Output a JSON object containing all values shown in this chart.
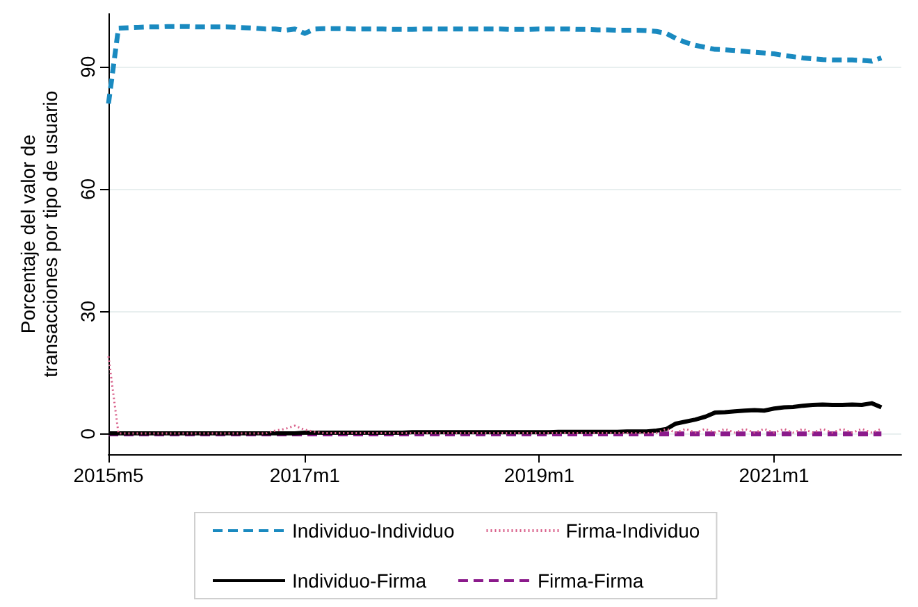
{
  "chart_data": {
    "type": "line",
    "ylabel": "Porcentaje del valor de transacciones por tipo de usuario",
    "x": [
      "2015-05",
      "2015-06",
      "2015-07",
      "2015-08",
      "2015-09",
      "2015-10",
      "2015-11",
      "2015-12",
      "2016-01",
      "2016-02",
      "2016-03",
      "2016-04",
      "2016-05",
      "2016-06",
      "2016-07",
      "2016-08",
      "2016-09",
      "2016-10",
      "2016-11",
      "2016-12",
      "2017-01",
      "2017-02",
      "2017-03",
      "2017-04",
      "2017-05",
      "2017-06",
      "2017-07",
      "2017-08",
      "2017-09",
      "2017-10",
      "2017-11",
      "2017-12",
      "2018-01",
      "2018-02",
      "2018-03",
      "2018-04",
      "2018-05",
      "2018-06",
      "2018-07",
      "2018-08",
      "2018-09",
      "2018-10",
      "2018-11",
      "2018-12",
      "2019-01",
      "2019-02",
      "2019-03",
      "2019-04",
      "2019-05",
      "2019-06",
      "2019-07",
      "2019-08",
      "2019-09",
      "2019-10",
      "2019-11",
      "2019-12",
      "2020-01",
      "2020-02",
      "2020-03",
      "2020-04",
      "2020-05",
      "2020-06",
      "2020-07",
      "2020-08",
      "2020-09",
      "2020-10",
      "2020-11",
      "2020-12",
      "2021-01",
      "2021-02",
      "2021-03",
      "2021-04",
      "2021-05",
      "2021-06",
      "2021-07",
      "2021-08",
      "2021-09",
      "2021-10",
      "2021-11",
      "2021-12"
    ],
    "xlim": [
      "2015-05",
      "2022-02"
    ],
    "xticks": [
      {
        "value": "2015-05",
        "label": "2015m5"
      },
      {
        "value": "2017-01",
        "label": "2017m1"
      },
      {
        "value": "2019-01",
        "label": "2019m1"
      },
      {
        "value": "2021-01",
        "label": "2021m1"
      }
    ],
    "ylim": [
      -5,
      103
    ],
    "yticks": [
      0,
      30,
      60,
      90
    ],
    "grid": "y",
    "legend": "bottom",
    "marker": "none",
    "series": [
      {
        "name": "Individuo-Individuo",
        "color": "#1a8ac0",
        "line_style": "dashed",
        "values": [
          81,
          99.5,
          99.6,
          99.7,
          99.8,
          99.8,
          99.9,
          99.9,
          99.9,
          99.8,
          99.8,
          99.8,
          99.8,
          99.7,
          99.6,
          99.5,
          99.3,
          99.3,
          99.0,
          99.3,
          98.2,
          99.3,
          99.4,
          99.4,
          99.4,
          99.3,
          99.3,
          99.3,
          99.3,
          99.2,
          99.2,
          99.2,
          99.3,
          99.3,
          99.3,
          99.3,
          99.3,
          99.3,
          99.3,
          99.3,
          99.3,
          99.2,
          99.2,
          99.2,
          99.3,
          99.3,
          99.3,
          99.3,
          99.2,
          99.2,
          99.1,
          99.1,
          99.0,
          99.0,
          99.0,
          98.9,
          98.7,
          98.2,
          97.0,
          96.0,
          95.3,
          94.8,
          94.3,
          94.2,
          94.0,
          93.8,
          93.6,
          93.4,
          93.2,
          92.8,
          92.5,
          92.2,
          92.0,
          91.8,
          91.7,
          91.7,
          91.7,
          91.6,
          91.4,
          92.2
        ]
      },
      {
        "name": "Individuo-Firma",
        "color": "#000000",
        "line_style": "solid",
        "values": [
          0.1,
          0.1,
          0.1,
          0.1,
          0.1,
          0.1,
          0.1,
          0.1,
          0.1,
          0.1,
          0.1,
          0.1,
          0.1,
          0.1,
          0.1,
          0.1,
          0.1,
          0.1,
          0.1,
          0.1,
          0.3,
          0.3,
          0.3,
          0.3,
          0.3,
          0.3,
          0.3,
          0.3,
          0.3,
          0.3,
          0.3,
          0.4,
          0.4,
          0.4,
          0.4,
          0.4,
          0.4,
          0.4,
          0.4,
          0.4,
          0.4,
          0.4,
          0.4,
          0.4,
          0.4,
          0.4,
          0.5,
          0.5,
          0.5,
          0.5,
          0.5,
          0.5,
          0.5,
          0.6,
          0.6,
          0.6,
          0.8,
          1.2,
          2.5,
          3.0,
          3.5,
          4.2,
          5.2,
          5.3,
          5.5,
          5.7,
          5.8,
          5.7,
          6.2,
          6.5,
          6.6,
          6.9,
          7.1,
          7.2,
          7.1,
          7.1,
          7.2,
          7.1,
          7.5,
          6.5
        ]
      },
      {
        "name": "Firma-Individuo",
        "color": "#d9608a",
        "line_style": "dotted",
        "values": [
          19,
          0.1,
          0.1,
          0.1,
          0.1,
          0.1,
          0.1,
          0.1,
          0.1,
          0.1,
          0.1,
          0.1,
          0.1,
          0.1,
          0.1,
          0.1,
          0.1,
          0.8,
          1.2,
          2.0,
          1.0,
          0.5,
          0.2,
          0.2,
          0.2,
          0.2,
          0.2,
          0.2,
          0.2,
          0.2,
          0.2,
          0.2,
          0.2,
          0.2,
          0.2,
          0.2,
          0.2,
          0.2,
          0.2,
          0.2,
          0.2,
          0.2,
          0.2,
          0.2,
          0.2,
          0.2,
          0.2,
          0.2,
          0.2,
          0.2,
          0.2,
          0.2,
          0.2,
          0.2,
          0.2,
          0.2,
          0.2,
          1.2,
          0.3,
          1.2,
          0.3,
          1.2,
          0.3,
          1.2,
          0.3,
          1.2,
          0.3,
          1.2,
          0.3,
          1.2,
          0.3,
          1.2,
          0.3,
          1.2,
          0.3,
          1.2,
          0.3,
          1.2,
          0.3,
          1.2
        ]
      },
      {
        "name": "Firma-Firma",
        "color": "#8b1a8b",
        "line_style": "dashed",
        "values": [
          0,
          0,
          0,
          0,
          0,
          0,
          0,
          0,
          0,
          0,
          0,
          0,
          0,
          0,
          0,
          0,
          0,
          0,
          0,
          0,
          0,
          0,
          0,
          0,
          0,
          0,
          0,
          0,
          0,
          0,
          0,
          0,
          0,
          0,
          0,
          0,
          0,
          0,
          0,
          0,
          0,
          0,
          0,
          0,
          0,
          0,
          0,
          0,
          0,
          0,
          0,
          0,
          0,
          0,
          0,
          0,
          0,
          0,
          0,
          0,
          0,
          0,
          0,
          0,
          0,
          0,
          0,
          0,
          0,
          0,
          0,
          0,
          0,
          0,
          0,
          0,
          0,
          0,
          0,
          0
        ]
      }
    ]
  }
}
